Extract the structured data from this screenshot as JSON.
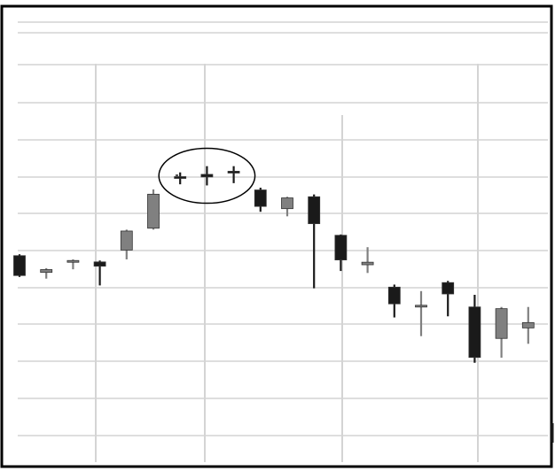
{
  "chart_data": {
    "type": "candlestick",
    "title": "",
    "xlabel": "",
    "ylabel": "",
    "grid": true,
    "ylim": [
      0,
      100
    ],
    "annotations": [
      {
        "type": "ellipse",
        "around_candles": [
          6,
          7,
          8
        ]
      }
    ],
    "candles": [
      {
        "open": 66.0,
        "close": 59.0,
        "high": 66.5,
        "low": 58.5,
        "color": "#1a1a1a"
      },
      {
        "open": 61.1,
        "close": 60.1,
        "high": 61.6,
        "low": 57.9,
        "color": "#808080"
      },
      {
        "open": 64.3,
        "close": 63.9,
        "high": 64.7,
        "low": 61.2,
        "color": "#808080"
      },
      {
        "open": 63.8,
        "close": 62.3,
        "high": 64.3,
        "low": 55.5,
        "color": "#1a1a1a"
      },
      {
        "open": 68.0,
        "close": 74.7,
        "high": 75.2,
        "low": 64.7,
        "color": "#808080"
      },
      {
        "open": 75.7,
        "close": 87.7,
        "high": 89.4,
        "low": 75.2,
        "color": "#808080"
      },
      {
        "open": 93.7,
        "close": 93.9,
        "high": 95.4,
        "low": 91.2,
        "color": "#1a1a1a"
      },
      {
        "open": 94.7,
        "close": 93.8,
        "high": 97.6,
        "low": 90.8,
        "color": "#1a1a1a"
      },
      {
        "open": 95.8,
        "close": 95.6,
        "high": 97.6,
        "low": 91.6,
        "color": "#1a1a1a"
      },
      {
        "open": 89.2,
        "close": 83.4,
        "high": 90.0,
        "low": 81.5,
        "color": "#1a1a1a"
      },
      {
        "open": 86.4,
        "close": 82.6,
        "high": 86.8,
        "low": 79.9,
        "color": "#808080"
      },
      {
        "open": 86.8,
        "close": 77.3,
        "high": 87.6,
        "low": 54.5,
        "color": "#1a1a1a"
      },
      {
        "open": 73.2,
        "close": 64.5,
        "high": 73.5,
        "low": 60.6,
        "color": "#1a1a1a"
      },
      {
        "open": 63.7,
        "close": 62.8,
        "high": 69.0,
        "low": 59.9,
        "color": "#808080"
      },
      {
        "open": 54.9,
        "close": 49.0,
        "high": 55.8,
        "low": 44.2,
        "color": "#1a1a1a"
      },
      {
        "open": 48.5,
        "close": 48.0,
        "high": 53.5,
        "low": 37.6,
        "color": "#808080"
      },
      {
        "open": 56.5,
        "close": 52.5,
        "high": 57.1,
        "low": 44.6,
        "color": "#1a1a1a"
      },
      {
        "open": 47.9,
        "close": 30.1,
        "high": 52.2,
        "low": 28.2,
        "color": "#1a1a1a"
      },
      {
        "open": 47.3,
        "close": 36.8,
        "high": 47.9,
        "low": 30.0,
        "color": "#808080"
      },
      {
        "open": 42.4,
        "close": 40.5,
        "high": 47.9,
        "low": 34.9,
        "color": "#808080"
      }
    ],
    "colors": {
      "dark": "#1a1a1a",
      "gray": "#808080",
      "grid": "#d4d4d4",
      "frame": "#000000"
    }
  }
}
